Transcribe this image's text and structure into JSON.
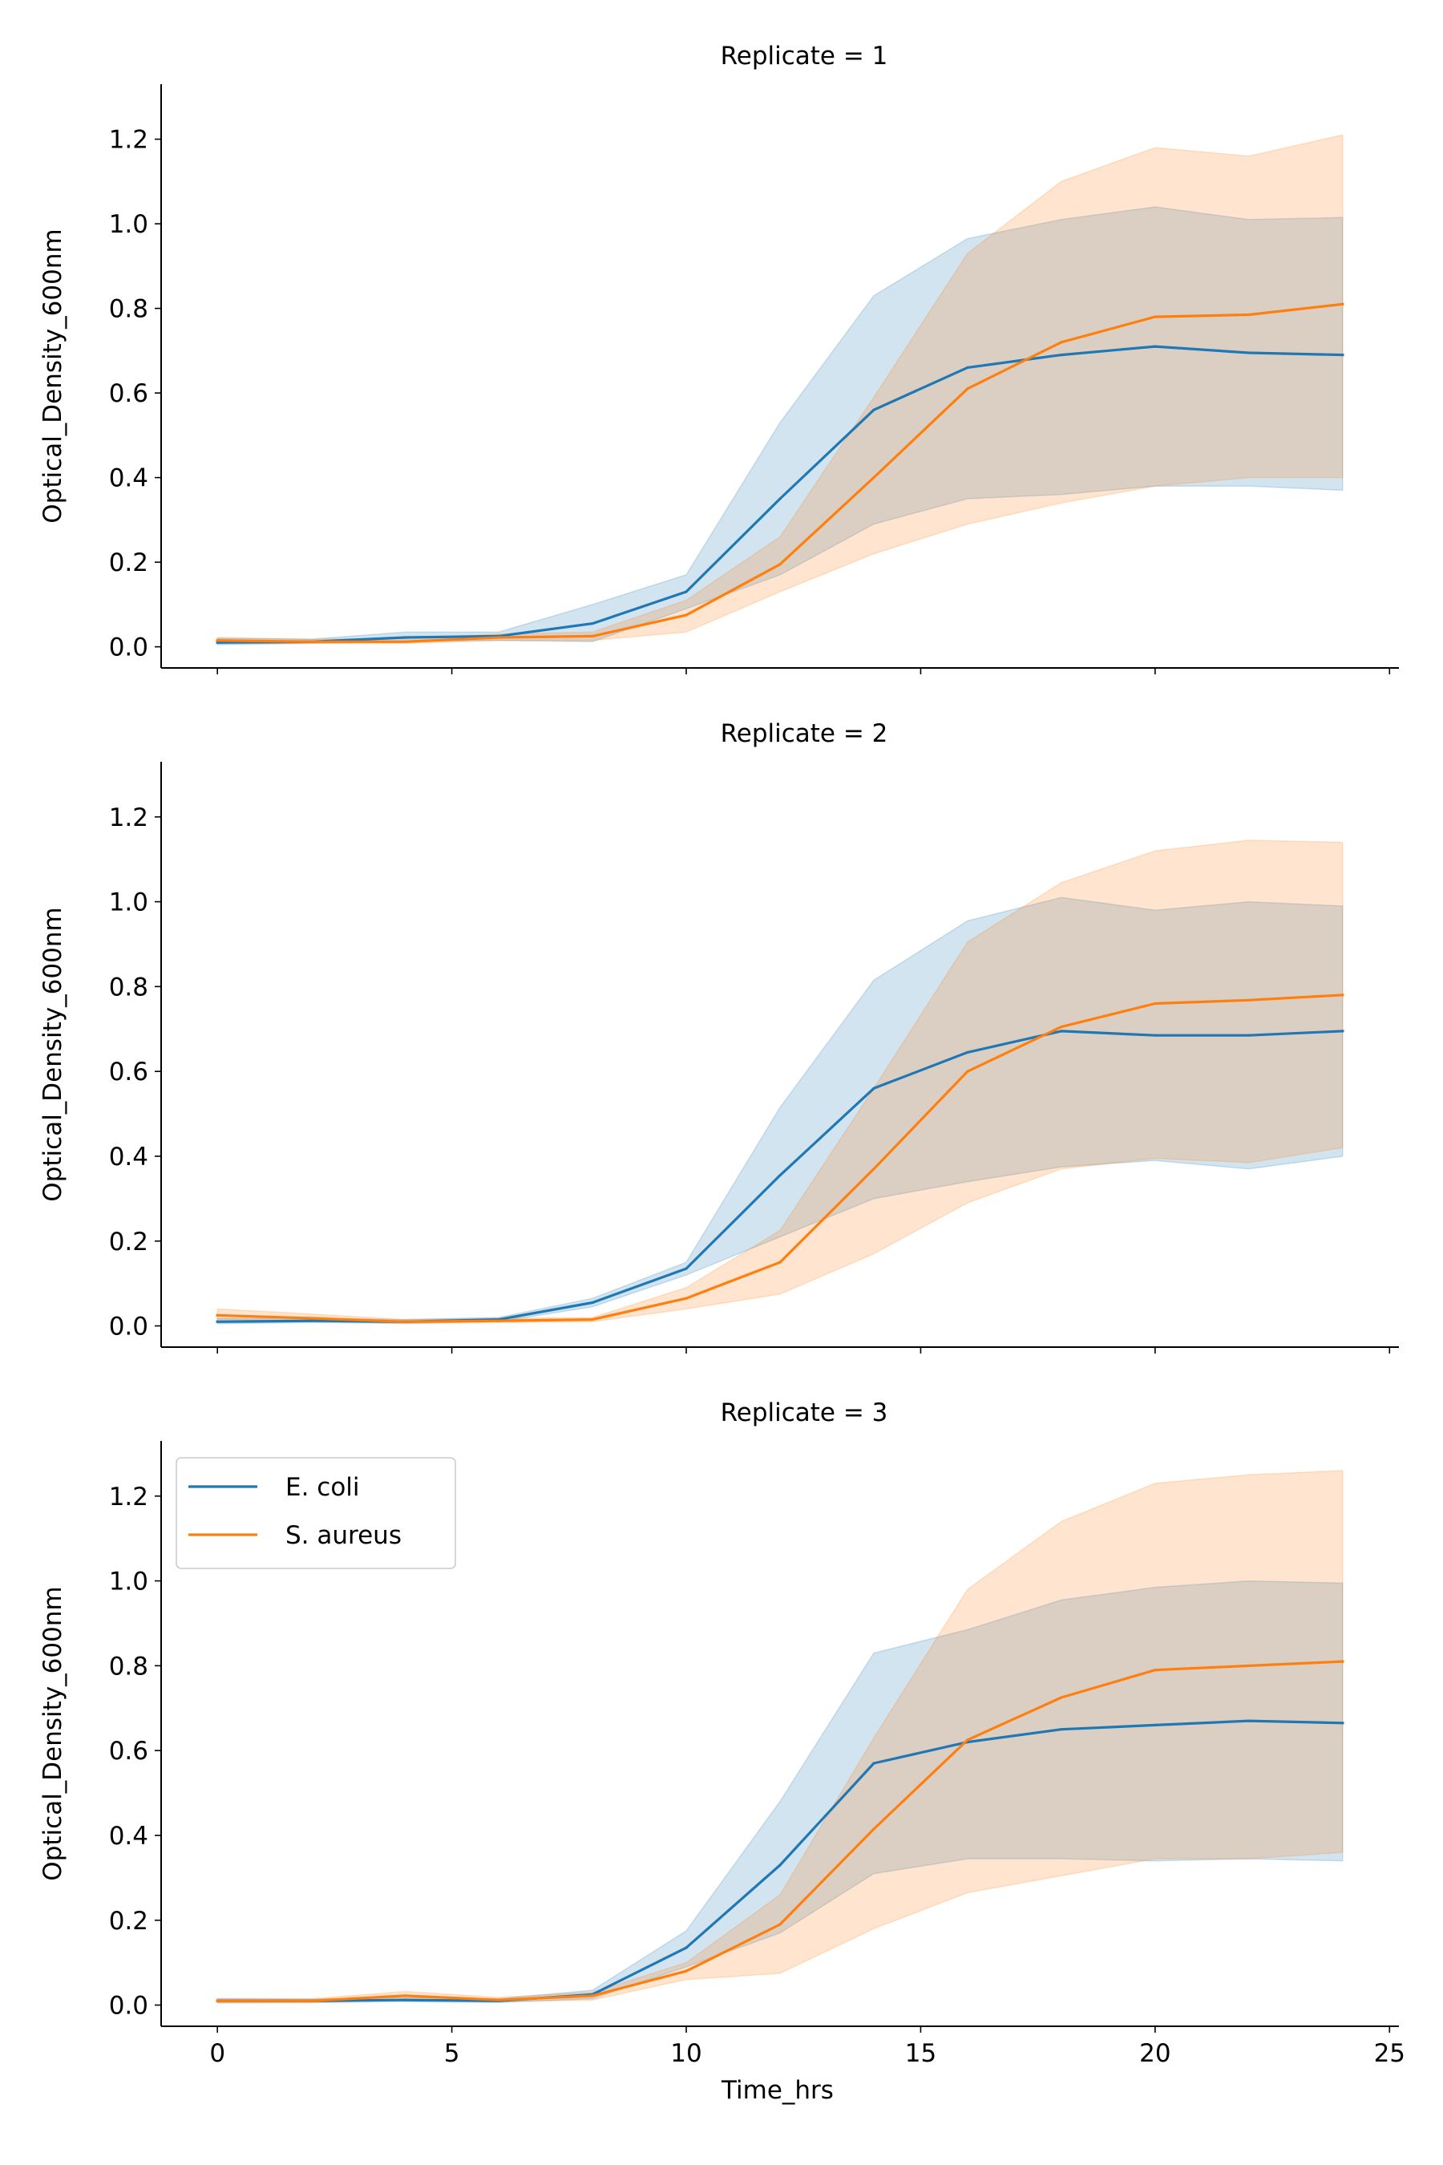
{
  "colors": {
    "ecoli": "#1f77b4",
    "saureus": "#ff7f0e",
    "ecoli_band": "#1f77b4",
    "saureus_band": "#ff7f0e",
    "axis": "#000000"
  },
  "chart_data": [
    {
      "type": "line",
      "title": "Replicate = 1",
      "xlabel": "",
      "ylabel": "Optical_Density_600nm",
      "xlim": [
        -1.2,
        25.2
      ],
      "ylim": [
        -0.05,
        1.33
      ],
      "xticks": [
        0,
        5,
        10,
        15,
        20,
        25
      ],
      "xtick_labels_visible": false,
      "yticks": [
        0.0,
        0.2,
        0.4,
        0.6,
        0.8,
        1.0,
        1.2
      ],
      "ytick_labels": [
        "0.0",
        "0.2",
        "0.4",
        "0.6",
        "0.8",
        "1.0",
        "1.2"
      ],
      "legend": false,
      "x": [
        0,
        2,
        4,
        6,
        8,
        10,
        12,
        14,
        16,
        18,
        20,
        22,
        24
      ],
      "series": [
        {
          "name": "E. coli",
          "color_key": "ecoli",
          "values": [
            0.01,
            0.012,
            0.022,
            0.025,
            0.055,
            0.13,
            0.35,
            0.56,
            0.66,
            0.69,
            0.71,
            0.695,
            0.69
          ],
          "lower": [
            0.005,
            0.008,
            0.012,
            0.015,
            0.012,
            0.09,
            0.17,
            0.29,
            0.35,
            0.36,
            0.38,
            0.38,
            0.37
          ],
          "upper": [
            0.02,
            0.018,
            0.035,
            0.035,
            0.1,
            0.17,
            0.53,
            0.83,
            0.965,
            1.01,
            1.04,
            1.01,
            1.015
          ]
        },
        {
          "name": "S. aureus",
          "color_key": "saureus",
          "values": [
            0.015,
            0.012,
            0.012,
            0.022,
            0.025,
            0.075,
            0.195,
            0.4,
            0.61,
            0.72,
            0.78,
            0.785,
            0.81
          ],
          "lower": [
            0.008,
            0.008,
            0.008,
            0.015,
            0.015,
            0.035,
            0.13,
            0.22,
            0.29,
            0.34,
            0.38,
            0.4,
            0.4
          ],
          "upper": [
            0.022,
            0.018,
            0.02,
            0.03,
            0.035,
            0.11,
            0.26,
            0.59,
            0.93,
            1.1,
            1.18,
            1.16,
            1.21
          ]
        }
      ]
    },
    {
      "type": "line",
      "title": "Replicate = 2",
      "xlabel": "",
      "ylabel": "Optical_Density_600nm",
      "xlim": [
        -1.2,
        25.2
      ],
      "ylim": [
        -0.05,
        1.33
      ],
      "xticks": [
        0,
        5,
        10,
        15,
        20,
        25
      ],
      "xtick_labels_visible": false,
      "yticks": [
        0.0,
        0.2,
        0.4,
        0.6,
        0.8,
        1.0,
        1.2
      ],
      "ytick_labels": [
        "0.0",
        "0.2",
        "0.4",
        "0.6",
        "0.8",
        "1.0",
        "1.2"
      ],
      "legend": false,
      "x": [
        0,
        2,
        4,
        6,
        8,
        10,
        12,
        14,
        16,
        18,
        20,
        22,
        24
      ],
      "series": [
        {
          "name": "E. coli",
          "color_key": "ecoli",
          "values": [
            0.01,
            0.012,
            0.01,
            0.015,
            0.055,
            0.135,
            0.355,
            0.56,
            0.645,
            0.695,
            0.685,
            0.685,
            0.695
          ],
          "lower": [
            0.005,
            0.008,
            0.006,
            0.01,
            0.045,
            0.12,
            0.21,
            0.3,
            0.34,
            0.375,
            0.39,
            0.37,
            0.4
          ],
          "upper": [
            0.018,
            0.018,
            0.015,
            0.02,
            0.065,
            0.15,
            0.515,
            0.815,
            0.955,
            1.01,
            0.98,
            1.0,
            0.99
          ]
        },
        {
          "name": "S. aureus",
          "color_key": "saureus",
          "values": [
            0.025,
            0.018,
            0.01,
            0.012,
            0.015,
            0.065,
            0.15,
            0.37,
            0.6,
            0.705,
            0.76,
            0.768,
            0.78
          ],
          "lower": [
            0.015,
            0.01,
            0.006,
            0.008,
            0.01,
            0.04,
            0.075,
            0.17,
            0.29,
            0.37,
            0.395,
            0.385,
            0.42
          ],
          "upper": [
            0.04,
            0.028,
            0.015,
            0.018,
            0.02,
            0.09,
            0.225,
            0.56,
            0.905,
            1.045,
            1.12,
            1.145,
            1.14
          ]
        }
      ]
    },
    {
      "type": "line",
      "title": "Replicate = 3",
      "xlabel": "Time_hrs",
      "ylabel": "Optical_Density_600nm",
      "xlim": [
        -1.2,
        25.2
      ],
      "ylim": [
        -0.05,
        1.33
      ],
      "xticks": [
        0,
        5,
        10,
        15,
        20,
        25
      ],
      "xtick_labels": [
        "0",
        "5",
        "10",
        "15",
        "20",
        "25"
      ],
      "xtick_labels_visible": true,
      "yticks": [
        0.0,
        0.2,
        0.4,
        0.6,
        0.8,
        1.0,
        1.2
      ],
      "ytick_labels": [
        "0.0",
        "0.2",
        "0.4",
        "0.6",
        "0.8",
        "1.0",
        "1.2"
      ],
      "legend": true,
      "legend_position": "top-left",
      "x": [
        0,
        2,
        4,
        6,
        8,
        10,
        12,
        14,
        16,
        18,
        20,
        22,
        24
      ],
      "series": [
        {
          "name": "E. coli",
          "color_key": "ecoli",
          "values": [
            0.01,
            0.01,
            0.012,
            0.01,
            0.025,
            0.135,
            0.33,
            0.57,
            0.62,
            0.65,
            0.66,
            0.67,
            0.665
          ],
          "lower": [
            0.005,
            0.006,
            0.008,
            0.006,
            0.015,
            0.09,
            0.17,
            0.31,
            0.345,
            0.345,
            0.34,
            0.345,
            0.34
          ],
          "upper": [
            0.015,
            0.014,
            0.018,
            0.015,
            0.035,
            0.175,
            0.48,
            0.83,
            0.885,
            0.955,
            0.985,
            1.0,
            0.995
          ]
        },
        {
          "name": "S. aureus",
          "color_key": "saureus",
          "values": [
            0.01,
            0.01,
            0.022,
            0.012,
            0.022,
            0.08,
            0.19,
            0.415,
            0.625,
            0.725,
            0.79,
            0.8,
            0.81
          ],
          "lower": [
            0.006,
            0.006,
            0.012,
            0.008,
            0.012,
            0.06,
            0.075,
            0.18,
            0.265,
            0.305,
            0.345,
            0.345,
            0.36
          ],
          "upper": [
            0.015,
            0.015,
            0.032,
            0.018,
            0.03,
            0.1,
            0.26,
            0.63,
            0.98,
            1.14,
            1.23,
            1.25,
            1.26
          ]
        }
      ]
    }
  ]
}
